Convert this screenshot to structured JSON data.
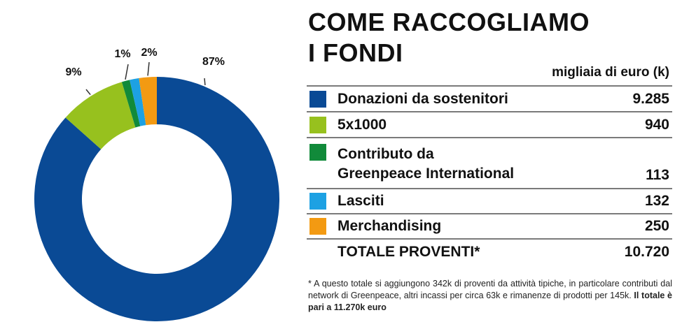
{
  "title_line1": "COME RACCOGLIAMO",
  "title_line2": "I FONDI",
  "unit_label": "migliaia di euro (k)",
  "chart_data": {
    "type": "pie",
    "title": "",
    "categories": [
      "Donazioni da sostenitori",
      "5x1000",
      "Contributo da Greenpeace International",
      "Lasciti",
      "Merchandising"
    ],
    "values": [
      9285,
      940,
      113,
      132,
      250
    ],
    "colors": [
      "#0a4a95",
      "#97c11e",
      "#118a3a",
      "#1da1e3",
      "#f39a12"
    ],
    "percent_labels": [
      "87%",
      "9%",
      "1%",
      "",
      "2%"
    ]
  },
  "rows": [
    {
      "label": "Donazioni da sostenitori",
      "value": "9.285",
      "color": "#0a4a95"
    },
    {
      "label": "5x1000",
      "value": "940",
      "color": "#97c11e"
    },
    {
      "label_line1": "Contributo da",
      "label_line2": "Greenpeace International",
      "value": "113",
      "color": "#118a3a"
    },
    {
      "label": "Lasciti",
      "value": "132",
      "color": "#1da1e3"
    },
    {
      "label": "Merchandising",
      "value": "250",
      "color": "#f39a12"
    }
  ],
  "total": {
    "label": "TOTALE PROVENTI*",
    "value": "10.720"
  },
  "footnote": {
    "text": "* A questo totale si aggiungono 342k di proventi da attività tipiche, in particolare contributi dal network di Greenpeace, altri incassi per circa 63k e rimanenze di prodotti per 145k.",
    "bold": "Il totale è pari a 11.270k euro"
  }
}
